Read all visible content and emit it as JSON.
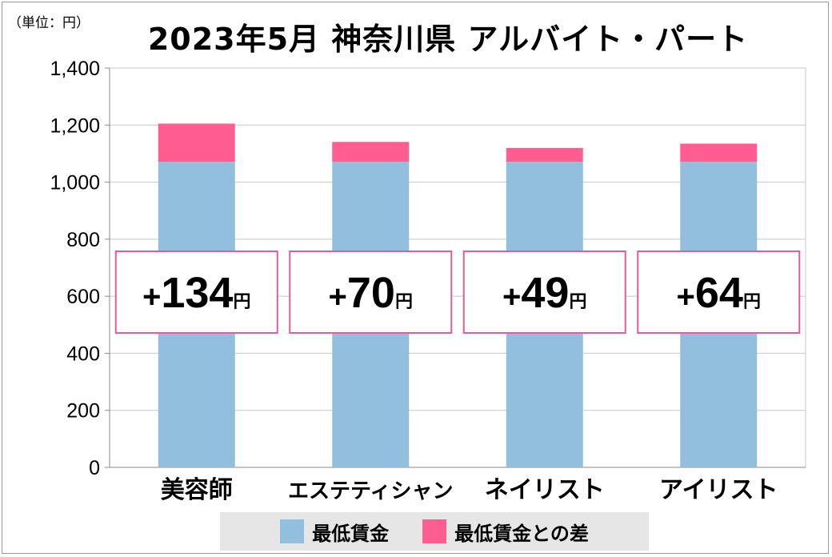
{
  "unit_label": "（単位：円）",
  "title": "2023年5月 神奈川県 アルバイト・パート",
  "colors": {
    "base": "#93bfde",
    "diff": "#ff5e93",
    "box_border": "#e85a9a",
    "grid": "#c8c8c8",
    "axis": "#8a8a8a"
  },
  "chart_data": {
    "type": "bar",
    "stacked": true,
    "categories": [
      "美容師",
      "エステティシャン",
      "ネイリスト",
      "アイリスト"
    ],
    "series": [
      {
        "name": "最低賃金",
        "values": [
          1071,
          1071,
          1071,
          1071
        ]
      },
      {
        "name": "最低賃金との差",
        "values": [
          134,
          70,
          49,
          64
        ]
      }
    ],
    "ylim": [
      0,
      1400
    ],
    "yticks": [
      0,
      200,
      400,
      600,
      800,
      1000,
      1200,
      1400
    ],
    "ytick_labels": [
      "0",
      "200",
      "400",
      "600",
      "800",
      "1,000",
      "1,200",
      "1,400"
    ],
    "grid": true,
    "legend_position": "bottom",
    "annotations": [
      {
        "sign": "+",
        "value": "134",
        "suffix": "円"
      },
      {
        "sign": "+",
        "value": "70",
        "suffix": "円"
      },
      {
        "sign": "+",
        "value": "49",
        "suffix": "円"
      },
      {
        "sign": "+",
        "value": "64",
        "suffix": "円"
      }
    ]
  },
  "legend": [
    {
      "label": "最低賃金",
      "color": "#93bfde"
    },
    {
      "label": "最低賃金との差",
      "color": "#ff5e93"
    }
  ]
}
